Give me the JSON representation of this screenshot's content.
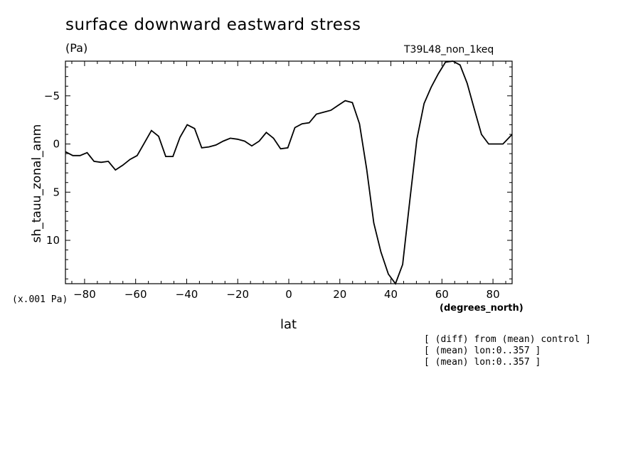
{
  "chart_data": {
    "type": "line",
    "title": "surface downward eastward stress",
    "units": "(Pa)",
    "run_label": "T39L48_non_1keq",
    "scale_note": "(x.001 Pa)",
    "xlabel": "lat",
    "x_units": "(degrees_north)",
    "ylabel": "sh_tauu_zonal_anm",
    "xlim": [
      -87.5,
      87.5
    ],
    "ylim": [
      14.5,
      -8.6
    ],
    "y_inverted": true,
    "xticks": [
      -80,
      -60,
      -40,
      -20,
      0,
      20,
      40,
      60,
      80
    ],
    "xtick_labels": [
      "−80",
      "−60",
      "−40",
      "−20",
      "0",
      "20",
      "40",
      "60",
      "80"
    ],
    "yticks": [
      -5,
      0,
      5,
      10
    ],
    "ytick_labels": [
      "−5",
      "0",
      "5",
      "10"
    ],
    "grid": false,
    "series": [
      {
        "x": [
          -87.5,
          -84.6,
          -81.8,
          -79.0,
          -76.3,
          -73.5,
          -70.7,
          -67.9,
          -65.0,
          -62.2,
          -59.4,
          -56.6,
          -53.8,
          -51.0,
          -48.2,
          -45.4,
          -42.6,
          -39.8,
          -36.9,
          -34.1,
          -31.3,
          -28.5,
          -25.7,
          -22.9,
          -20.1,
          -17.3,
          -14.5,
          -11.6,
          -8.8,
          -6.0,
          -3.2,
          -0.4,
          2.4,
          5.2,
          8.0,
          10.8,
          13.7,
          16.5,
          19.3,
          22.1,
          24.9,
          27.7,
          30.5,
          33.3,
          36.1,
          39.0,
          41.8,
          44.6,
          47.4,
          50.2,
          53.0,
          55.8,
          58.6,
          61.4,
          64.3,
          67.1,
          69.9,
          72.7,
          75.5,
          78.3,
          81.1,
          83.9,
          87.5
        ],
        "values": [
          0.8,
          1.2,
          1.2,
          0.9,
          1.8,
          1.9,
          1.8,
          2.7,
          2.2,
          1.6,
          1.2,
          -0.1,
          -1.4,
          -0.8,
          1.3,
          1.3,
          -0.7,
          -2.0,
          -1.6,
          0.4,
          0.3,
          0.1,
          -0.3,
          -0.6,
          -0.5,
          -0.3,
          0.2,
          -0.3,
          -1.2,
          -0.6,
          0.5,
          0.4,
          -1.7,
          -2.1,
          -2.2,
          -3.1,
          -3.3,
          -3.5,
          -4.0,
          -4.5,
          -4.3,
          -2.1,
          2.6,
          8.2,
          11.2,
          13.5,
          14.5,
          12.5,
          5.9,
          -0.5,
          -4.2,
          -5.9,
          -7.3,
          -8.5,
          -8.6,
          -8.2,
          -6.3,
          -3.6,
          -1.0,
          0,
          0,
          0,
          -1.0
        ]
      }
    ],
    "annotations": [
      "[ (diff) from (mean) control ]",
      "[ (mean) lon:0..357 ]",
      "[ (mean) lon:0..357 ]"
    ]
  }
}
